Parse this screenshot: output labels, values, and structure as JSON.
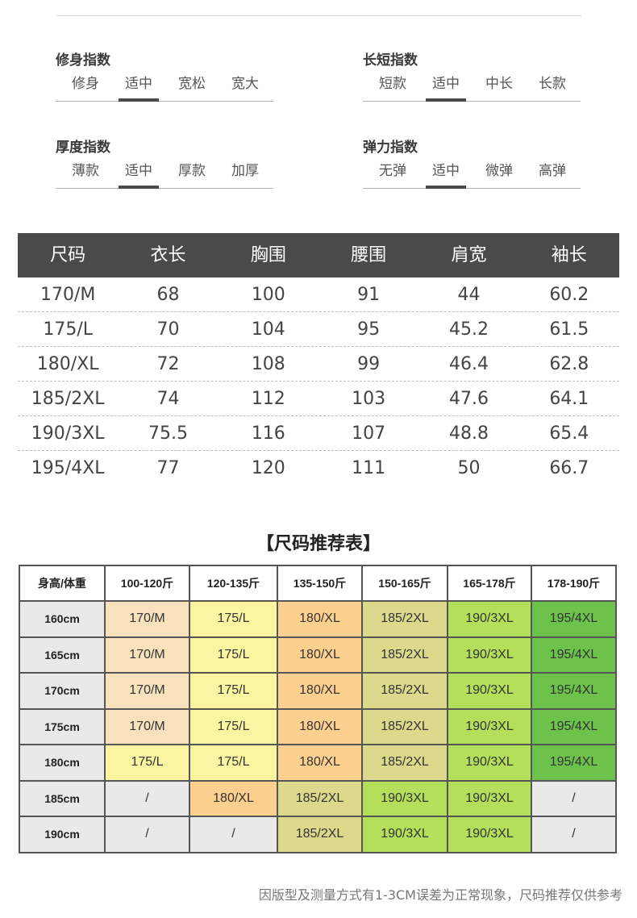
{
  "indices": [
    {
      "title": "修身指数",
      "options": [
        "修身",
        "适中",
        "宽松",
        "宽大"
      ],
      "selected": 1
    },
    {
      "title": "长短指数",
      "options": [
        "短款",
        "适中",
        "中长",
        "长款"
      ],
      "selected": 1
    },
    {
      "title": "厚度指数",
      "options": [
        "薄款",
        "适中",
        "厚款",
        "加厚"
      ],
      "selected": 1
    },
    {
      "title": "弹力指数",
      "options": [
        "无弹",
        "适中",
        "微弹",
        "高弹"
      ],
      "selected": 1
    }
  ],
  "size_table": {
    "headers": [
      "尺码",
      "衣长",
      "胸围",
      "腰围",
      "肩宽",
      "袖长"
    ],
    "rows": [
      [
        "170/M",
        "68",
        "100",
        "91",
        "44",
        "60.2"
      ],
      [
        "175/L",
        "70",
        "104",
        "95",
        "45.2",
        "61.5"
      ],
      [
        "180/XL",
        "72",
        "108",
        "99",
        "46.4",
        "62.8"
      ],
      [
        "185/2XL",
        "74",
        "112",
        "103",
        "47.6",
        "64.1"
      ],
      [
        "190/3XL",
        "75.5",
        "116",
        "107",
        "48.8",
        "65.4"
      ],
      [
        "195/4XL",
        "77",
        "120",
        "111",
        "50",
        "66.7"
      ]
    ]
  },
  "recommendation": {
    "title": "【尺码推荐表】",
    "corner": "身高/体重",
    "weights": [
      "100-120斤",
      "120-135斤",
      "135-150斤",
      "150-165斤",
      "165-178斤",
      "178-190斤"
    ],
    "rows": [
      {
        "height": "160cm",
        "cells": [
          "170/M",
          "175/L",
          "180/XL",
          "185/2XL",
          "190/3XL",
          "195/4XL"
        ]
      },
      {
        "height": "165cm",
        "cells": [
          "170/M",
          "175/L",
          "180/XL",
          "185/2XL",
          "190/3XL",
          "195/4XL"
        ]
      },
      {
        "height": "170cm",
        "cells": [
          "170/M",
          "175/L",
          "180/XL",
          "185/2XL",
          "190/3XL",
          "195/4XL"
        ]
      },
      {
        "height": "175cm",
        "cells": [
          "170/M",
          "175/L",
          "180/XL",
          "185/2XL",
          "190/3XL",
          "195/4XL"
        ]
      },
      {
        "height": "180cm",
        "cells": [
          "175/L",
          "175/L",
          "180/XL",
          "185/2XL",
          "190/3XL",
          "195/4XL"
        ]
      },
      {
        "height": "185cm",
        "cells": [
          "/",
          "180/XL",
          "185/2XL",
          "190/3XL",
          "190/3XL",
          "/"
        ]
      },
      {
        "height": "190cm",
        "cells": [
          "/",
          "/",
          "185/2XL",
          "190/3XL",
          "190/3XL",
          "/"
        ]
      }
    ],
    "size_colors": {
      "170/M": "#f8e2bd",
      "175/L": "#fbf4a0",
      "180/XL": "#fdd08f",
      "185/2XL": "#dcd98c",
      "190/3XL": "#b3df5a",
      "195/4XL": "#6cc24a",
      "/": "#e9e9e9"
    }
  },
  "footnote": "因版型及测量方式有1-3CM误差为正常现象，尺码推荐仅供参考"
}
